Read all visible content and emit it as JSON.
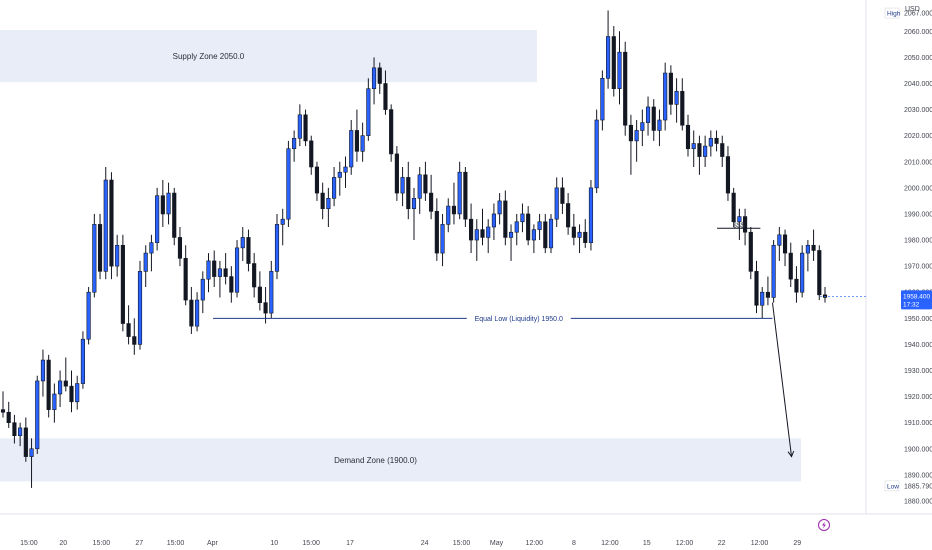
{
  "chart_data": {
    "type": "candlestick",
    "symbol_currency": "USD",
    "ylim": [
      1875,
      2072
    ],
    "y_ticks": [
      1880,
      1890,
      1900,
      1910,
      1920,
      1930,
      1940,
      1950,
      1960,
      1970,
      1980,
      1990,
      2000,
      2010,
      2020,
      2030,
      2040,
      2050,
      2060
    ],
    "y_tick_labels": [
      "1880.000",
      "1890.000",
      "1900.000",
      "1910.000",
      "1920.000",
      "1930.000",
      "1940.000",
      "1950.000",
      "1960.000",
      "1970.000",
      "1980.000",
      "1990.000",
      "2000.000",
      "2010.000",
      "2020.000",
      "2030.000",
      "2040.000",
      "2050.000",
      "2060.000"
    ],
    "x_ticks": [
      {
        "label": "15:00",
        "pos": 0.0334
      },
      {
        "label": "20",
        "pos": 0.0731
      },
      {
        "label": "15:00",
        "pos": 0.1171
      },
      {
        "label": "27",
        "pos": 0.1608
      },
      {
        "label": "15:00",
        "pos": 0.2027
      },
      {
        "label": "Apr",
        "pos": 0.2453
      },
      {
        "label": "10",
        "pos": 0.3167
      },
      {
        "label": "15:00",
        "pos": 0.3593
      },
      {
        "label": "17",
        "pos": 0.4042
      },
      {
        "label": "24",
        "pos": 0.4903
      },
      {
        "label": "15:00",
        "pos": 0.5329
      },
      {
        "label": "May",
        "pos": 0.5733
      },
      {
        "label": "12:00",
        "pos": 0.617
      },
      {
        "label": "8",
        "pos": 0.6627
      },
      {
        "label": "12:00",
        "pos": 0.7043
      },
      {
        "label": "15",
        "pos": 0.7469
      },
      {
        "label": "12:00",
        "pos": 0.7905
      },
      {
        "label": "22",
        "pos": 0.8333
      },
      {
        "label": "12:00",
        "pos": 0.877
      },
      {
        "label": "29",
        "pos": 0.9206
      }
    ],
    "candles": [
      [
        1915,
        1922,
        1912,
        1914
      ],
      [
        1914,
        1918,
        1908,
        1910
      ],
      [
        1910,
        1913,
        1902,
        1905
      ],
      [
        1905,
        1910,
        1901,
        1908
      ],
      [
        1908,
        1912,
        1895,
        1897
      ],
      [
        1897,
        1904,
        1885,
        1900
      ],
      [
        1900,
        1928,
        1898,
        1926
      ],
      [
        1926,
        1938,
        1920,
        1934
      ],
      [
        1934,
        1936,
        1912,
        1915
      ],
      [
        1915,
        1925,
        1910,
        1921
      ],
      [
        1921,
        1930,
        1916,
        1926
      ],
      [
        1926,
        1935,
        1922,
        1924
      ],
      [
        1924,
        1930,
        1914,
        1918
      ],
      [
        1918,
        1928,
        1915,
        1925
      ],
      [
        1925,
        1945,
        1923,
        1942
      ],
      [
        1942,
        1962,
        1940,
        1960
      ],
      [
        1960,
        1990,
        1958,
        1986
      ],
      [
        1986,
        1990,
        1965,
        1968
      ],
      [
        1968,
        2008,
        1965,
        2003
      ],
      [
        2003,
        2006,
        1965,
        1970
      ],
      [
        1970,
        1982,
        1966,
        1978
      ],
      [
        1978,
        1982,
        1945,
        1948
      ],
      [
        1948,
        1955,
        1940,
        1943
      ],
      [
        1943,
        1950,
        1936,
        1940
      ],
      [
        1940,
        1972,
        1938,
        1968
      ],
      [
        1968,
        1978,
        1962,
        1975
      ],
      [
        1975,
        1982,
        1968,
        1979
      ],
      [
        1979,
        2000,
        1976,
        1997
      ],
      [
        1997,
        2003,
        1985,
        1990
      ],
      [
        1990,
        2002,
        1986,
        1998
      ],
      [
        1998,
        2000,
        1978,
        1981
      ],
      [
        1981,
        1985,
        1970,
        1973
      ],
      [
        1973,
        1978,
        1955,
        1957
      ],
      [
        1957,
        1962,
        1944,
        1947
      ],
      [
        1947,
        1960,
        1945,
        1957
      ],
      [
        1957,
        1968,
        1952,
        1965
      ],
      [
        1965,
        1975,
        1960,
        1972
      ],
      [
        1972,
        1976,
        1962,
        1966
      ],
      [
        1966,
        1972,
        1958,
        1969
      ],
      [
        1969,
        1975,
        1963,
        1966
      ],
      [
        1966,
        1970,
        1956,
        1960
      ],
      [
        1960,
        1980,
        1958,
        1977
      ],
      [
        1977,
        1985,
        1972,
        1981
      ],
      [
        1981,
        1984,
        1968,
        1971
      ],
      [
        1971,
        1975,
        1958,
        1962
      ],
      [
        1962,
        1968,
        1953,
        1956
      ],
      [
        1956,
        1962,
        1948,
        1952
      ],
      [
        1952,
        1972,
        1950,
        1968
      ],
      [
        1968,
        1990,
        1965,
        1986
      ],
      [
        1986,
        1992,
        1978,
        1988
      ],
      [
        1988,
        2018,
        1985,
        2015
      ],
      [
        2015,
        2022,
        2010,
        2019
      ],
      [
        2019,
        2032,
        2016,
        2028
      ],
      [
        2028,
        2030,
        2016,
        2018
      ],
      [
        2018,
        2020,
        2005,
        2008
      ],
      [
        2008,
        2010,
        1995,
        1998
      ],
      [
        1998,
        2002,
        1988,
        1992
      ],
      [
        1992,
        2000,
        1985,
        1996
      ],
      [
        1996,
        2008,
        1993,
        2004
      ],
      [
        2004,
        2010,
        1997,
        2006
      ],
      [
        2006,
        2012,
        2000,
        2008
      ],
      [
        2008,
        2026,
        2005,
        2022
      ],
      [
        2022,
        2030,
        2010,
        2014
      ],
      [
        2014,
        2025,
        2010,
        2020
      ],
      [
        2020,
        2042,
        2018,
        2038
      ],
      [
        2038,
        2050,
        2032,
        2046
      ],
      [
        2046,
        2048,
        2036,
        2040
      ],
      [
        2040,
        2045,
        2028,
        2030
      ],
      [
        2030,
        2032,
        2010,
        2013
      ],
      [
        2013,
        2016,
        1995,
        1998
      ],
      [
        1998,
        2008,
        1993,
        2004
      ],
      [
        2004,
        2010,
        1988,
        1992
      ],
      [
        1992,
        2000,
        1980,
        1996
      ],
      [
        1996,
        2008,
        1990,
        2005
      ],
      [
        2005,
        2010,
        1995,
        1998
      ],
      [
        1998,
        2005,
        1988,
        1991
      ],
      [
        1991,
        1996,
        1972,
        1975
      ],
      [
        1975,
        1990,
        1970,
        1986
      ],
      [
        1986,
        1996,
        1983,
        1993
      ],
      [
        1993,
        2002,
        1986,
        1990
      ],
      [
        1990,
        2010,
        1988,
        2006
      ],
      [
        2006,
        2008,
        1985,
        1988
      ],
      [
        1988,
        1994,
        1975,
        1980
      ],
      [
        1980,
        1988,
        1972,
        1984
      ],
      [
        1984,
        1992,
        1978,
        1981
      ],
      [
        1981,
        1988,
        1975,
        1985
      ],
      [
        1985,
        1994,
        1980,
        1990
      ],
      [
        1990,
        1998,
        1986,
        1995
      ],
      [
        1995,
        1999,
        1978,
        1981
      ],
      [
        1981,
        1986,
        1972,
        1983
      ],
      [
        1983,
        1990,
        1978,
        1987
      ],
      [
        1987,
        1994,
        1983,
        1990
      ],
      [
        1990,
        1993,
        1978,
        1980
      ],
      [
        1980,
        1986,
        1975,
        1984
      ],
      [
        1984,
        1990,
        1980,
        1987
      ],
      [
        1987,
        1990,
        1975,
        1977
      ],
      [
        1977,
        1990,
        1975,
        1988
      ],
      [
        1988,
        2004,
        1985,
        2000
      ],
      [
        2000,
        2004,
        1990,
        1994
      ],
      [
        1994,
        1998,
        1982,
        1985
      ],
      [
        1985,
        1990,
        1978,
        1981
      ],
      [
        1981,
        1986,
        1975,
        1983
      ],
      [
        1983,
        1988,
        1977,
        1979
      ],
      [
        1979,
        2003,
        1976,
        2000
      ],
      [
        2000,
        2030,
        1998,
        2026
      ],
      [
        2026,
        2045,
        2022,
        2042
      ],
      [
        2042,
        2068,
        2038,
        2058
      ],
      [
        2058,
        2062,
        2035,
        2038
      ],
      [
        2038,
        2060,
        2032,
        2052
      ],
      [
        2052,
        2056,
        2020,
        2024
      ],
      [
        2024,
        2028,
        2005,
        2018
      ],
      [
        2018,
        2026,
        2010,
        2022
      ],
      [
        2022,
        2030,
        2016,
        2025
      ],
      [
        2025,
        2035,
        2020,
        2031
      ],
      [
        2031,
        2034,
        2018,
        2022
      ],
      [
        2022,
        2030,
        2016,
        2026
      ],
      [
        2026,
        2048,
        2022,
        2044
      ],
      [
        2044,
        2047,
        2028,
        2032
      ],
      [
        2032,
        2042,
        2025,
        2037
      ],
      [
        2037,
        2042,
        2022,
        2024
      ],
      [
        2024,
        2028,
        2012,
        2015
      ],
      [
        2015,
        2022,
        2008,
        2017
      ],
      [
        2017,
        2020,
        2005,
        2012
      ],
      [
        2012,
        2020,
        2008,
        2016
      ],
      [
        2016,
        2022,
        2012,
        2019
      ],
      [
        2019,
        2022,
        2014,
        2017
      ],
      [
        2017,
        2020,
        2008,
        2012
      ],
      [
        2012,
        2016,
        1995,
        1998
      ],
      [
        1998,
        2000,
        1985,
        1987
      ],
      [
        1987,
        1992,
        1980,
        1989
      ],
      [
        1989,
        1992,
        1978,
        1983
      ],
      [
        1983,
        1985,
        1965,
        1968
      ],
      [
        1968,
        1972,
        1952,
        1955
      ],
      [
        1955,
        1962,
        1950,
        1960
      ],
      [
        1960,
        1966,
        1955,
        1958
      ],
      [
        1958,
        1980,
        1956,
        1978
      ],
      [
        1978,
        1985,
        1972,
        1982
      ],
      [
        1982,
        1984,
        1970,
        1975
      ],
      [
        1975,
        1979,
        1962,
        1965
      ],
      [
        1965,
        1970,
        1956,
        1960
      ],
      [
        1960,
        1978,
        1958,
        1975
      ],
      [
        1975,
        1980,
        1968,
        1978
      ],
      [
        1978,
        1984,
        1972,
        1976
      ],
      [
        1976,
        1978,
        1957,
        1959
      ],
      [
        1959,
        1962,
        1956,
        1958
      ]
    ],
    "zones": [
      {
        "name": "Supply Zone 2050.0",
        "from": 2040.5,
        "to": 2060.5,
        "x_start": 0.0,
        "x_end": 0.62
      },
      {
        "name": "Demand Zone (1900.0)",
        "from": 1887.5,
        "to": 1904,
        "x_start": 0.0,
        "x_end": 0.925
      }
    ],
    "lines": [
      {
        "name": "Equal Low (Liquidity) 1950.0",
        "value": 1950,
        "x_start": 0.246,
        "x_end": 0.892
      }
    ],
    "liquidity_mark": {
      "label": "$$$",
      "value": 1984.5,
      "x_start": 0.828,
      "x_end": 0.878
    },
    "projection_arrow": {
      "from": [
        0.892,
        1956
      ],
      "to": [
        0.914,
        1897
      ]
    },
    "current_price": {
      "value": 1958.4,
      "label": "1958.400",
      "countdown": "17:32"
    },
    "high": {
      "label": "High",
      "value": 2067,
      "text": "2067.000"
    },
    "low": {
      "label": "Low",
      "value": 1885.79,
      "text": "1885.790"
    },
    "grid": false,
    "colors": {
      "up": "#2962ff",
      "down": "#131722",
      "wick": "#131722",
      "zone": "#e9edf8",
      "line": "#1e3a8a",
      "price_badge": "#2962ff"
    }
  }
}
